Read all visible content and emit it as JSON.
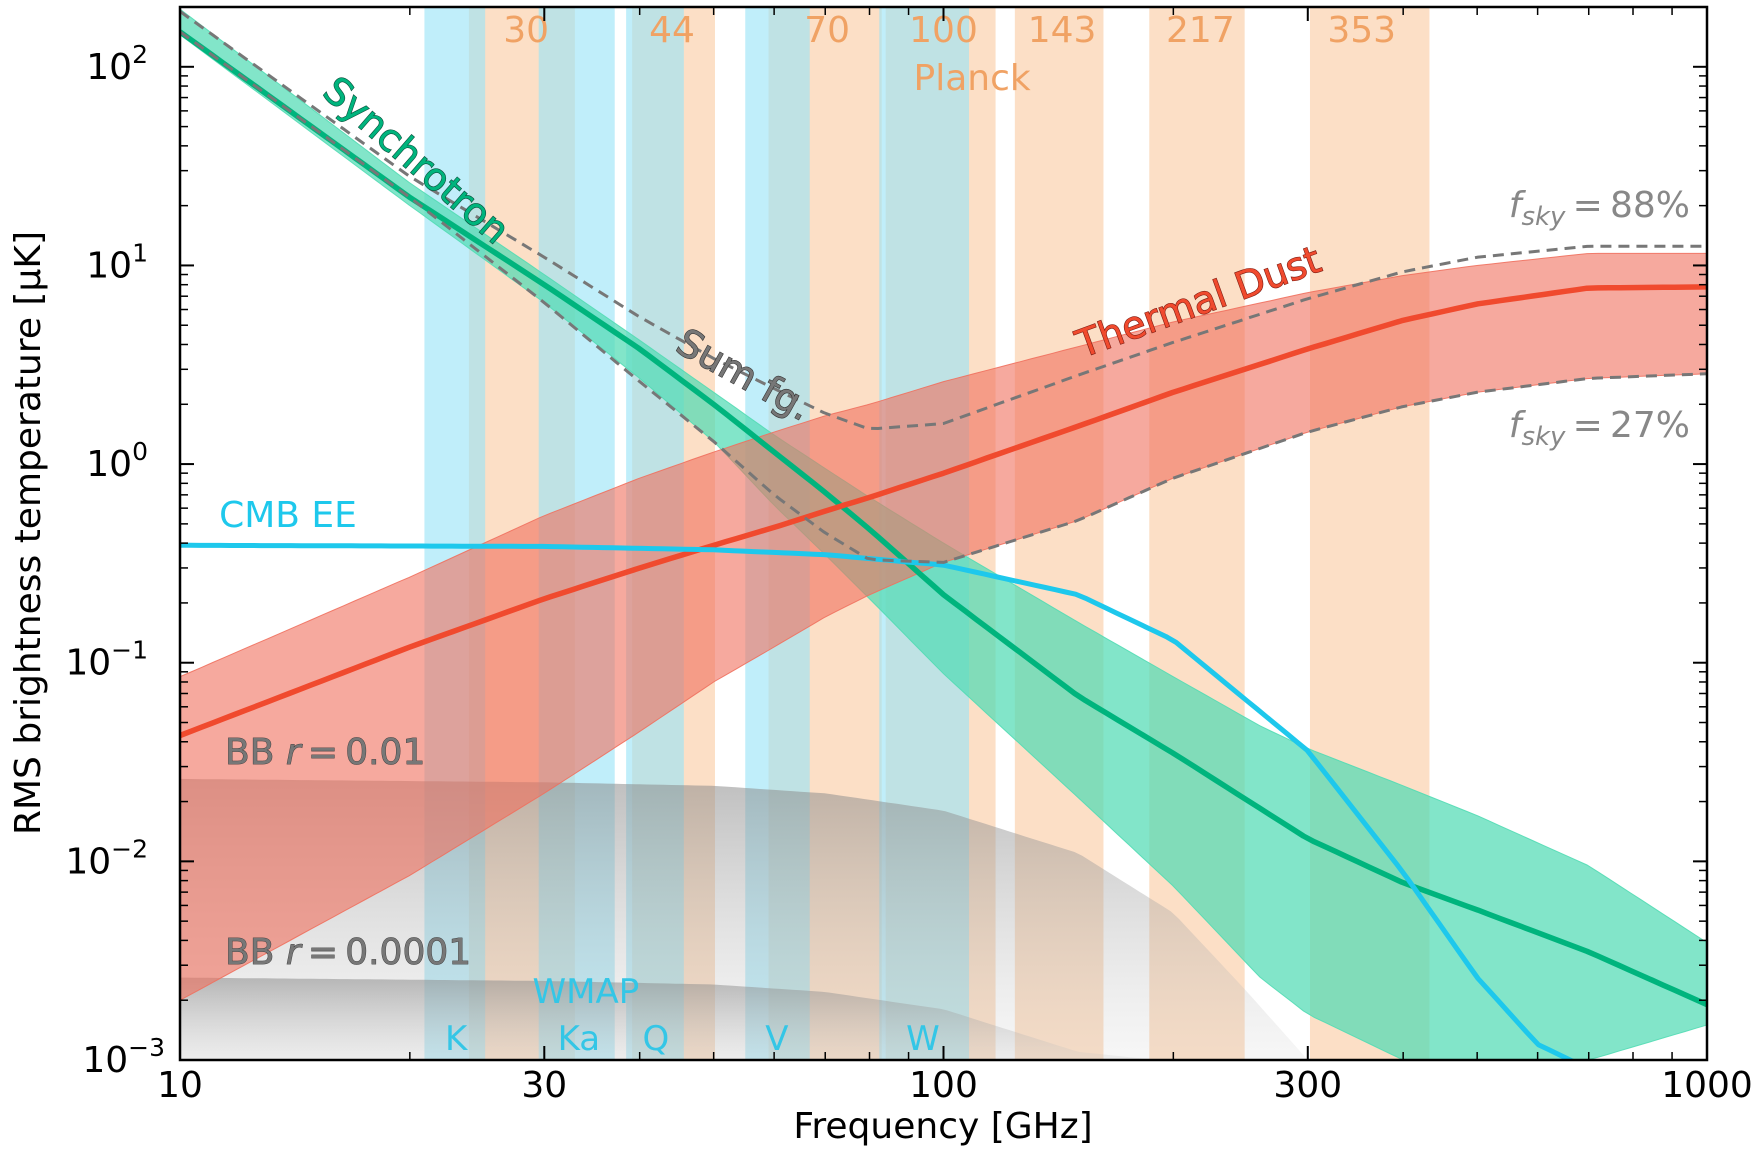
{
  "chart_data": {
    "type": "line",
    "title": "",
    "xlabel": "Frequency [GHz]",
    "ylabel": "RMS brightness temperature [μK]",
    "xscale": "log",
    "yscale": "log",
    "xlim": [
      10,
      1000
    ],
    "ylim": [
      0.001,
      200
    ],
    "xticks": [
      {
        "value": 10,
        "label": "10"
      },
      {
        "value": 30,
        "label": "30"
      },
      {
        "value": 100,
        "label": "100"
      },
      {
        "value": 300,
        "label": "300"
      },
      {
        "value": 1000,
        "label": "1000"
      }
    ],
    "yticks": [
      {
        "value": 0.001,
        "base": "10",
        "exp": "−3"
      },
      {
        "value": 0.01,
        "base": "10",
        "exp": "−2"
      },
      {
        "value": 0.1,
        "base": "10",
        "exp": "−1"
      },
      {
        "value": 1,
        "base": "10",
        "exp": "0"
      },
      {
        "value": 10,
        "base": "10",
        "exp": "1"
      },
      {
        "value": 100,
        "base": "10",
        "exp": "2"
      }
    ],
    "colors": {
      "synchrotron": "#00b47d",
      "synchrotron_band": "#52dbb4",
      "dust": "#f04a2e",
      "dust_band": "#f0705e",
      "cmb": "#1ec8ec",
      "sum": "#777777",
      "planck_band": "#fbd2b0",
      "wmap_band": "#9ae4f7",
      "planck_text": "#f0a264",
      "wmap_text": "#34c6e6",
      "bb": "#9e9e9e"
    },
    "planck_bands": [
      {
        "label": "30",
        "center": 28.4,
        "lo": 23.9,
        "hi": 32.9
      },
      {
        "label": "44",
        "center": 44.1,
        "lo": 39.1,
        "hi": 50.2
      },
      {
        "label": "70",
        "center": 70.4,
        "lo": 59.0,
        "hi": 83.0
      },
      {
        "label": "100",
        "center": 100,
        "lo": 84,
        "hi": 117
      },
      {
        "label": "143",
        "center": 143,
        "lo": 124,
        "hi": 162
      },
      {
        "label": "217",
        "center": 217,
        "lo": 186,
        "hi": 248
      },
      {
        "label": "353",
        "center": 353,
        "lo": 302,
        "hi": 433
      }
    ],
    "planck_name": "Planck",
    "wmap_bands": [
      {
        "label": "K",
        "lo": 20.9,
        "hi": 25.1
      },
      {
        "label": "Ka",
        "lo": 29.5,
        "hi": 37.1
      },
      {
        "label": "Q",
        "lo": 38.4,
        "hi": 45.7
      },
      {
        "label": "V",
        "lo": 55.0,
        "hi": 66.8
      },
      {
        "label": "W",
        "lo": 82.4,
        "hi": 108.0
      }
    ],
    "wmap_name": "WMAP",
    "series": [
      {
        "name": "Synchrotron",
        "x": [
          10,
          20,
          30,
          40,
          50,
          60,
          70,
          80,
          100,
          150,
          200,
          300,
          400,
          500,
          700,
          1000
        ],
        "y": [
          150,
          22,
          8.0,
          3.8,
          2.0,
          1.15,
          0.72,
          0.47,
          0.22,
          0.068,
          0.035,
          0.013,
          0.0078,
          0.0057,
          0.0035,
          0.0019
        ]
      },
      {
        "name": "Thermal Dust",
        "x": [
          10,
          20,
          30,
          40,
          50,
          60,
          70,
          80,
          100,
          150,
          200,
          300,
          400,
          500,
          700,
          1000
        ],
        "y": [
          0.043,
          0.12,
          0.21,
          0.3,
          0.39,
          0.48,
          0.58,
          0.68,
          0.9,
          1.55,
          2.3,
          3.8,
          5.3,
          6.4,
          7.7,
          7.8
        ]
      },
      {
        "name": "CMB EE",
        "x": [
          10,
          30,
          50,
          70,
          100,
          150,
          200,
          300,
          400,
          500,
          600,
          700
        ],
        "y": [
          0.39,
          0.385,
          0.37,
          0.35,
          0.31,
          0.22,
          0.13,
          0.036,
          0.0088,
          0.0026,
          0.0012,
          0.0009
        ]
      },
      {
        "name": "Sum fg.",
        "label": "f_sky = 88%",
        "x": [
          10,
          20,
          30,
          40,
          50,
          60,
          70,
          80,
          100,
          150,
          200,
          300,
          400,
          500,
          700,
          1000
        ],
        "y": [
          190,
          28,
          11,
          5.5,
          3.4,
          2.4,
          1.8,
          1.5,
          1.6,
          2.8,
          4.1,
          6.8,
          9.3,
          11,
          12.5,
          12.5
        ]
      },
      {
        "name": "Sum fg. lower",
        "label": "f_sky = 27%",
        "x": [
          10,
          20,
          30,
          40,
          50,
          60,
          70,
          80,
          100,
          150,
          200,
          300,
          400,
          500,
          700,
          1000
        ],
        "y": [
          150,
          22,
          6.5,
          2.6,
          1.3,
          0.7,
          0.45,
          0.33,
          0.32,
          0.52,
          0.85,
          1.45,
          1.95,
          2.3,
          2.7,
          2.85
        ]
      }
    ],
    "bands": {
      "synchrotron": {
        "x": [
          10,
          20,
          30,
          40,
          50,
          60,
          70,
          80,
          100,
          150,
          200,
          260,
          300,
          400,
          500,
          700,
          1000
        ],
        "hi": [
          195,
          26,
          9.0,
          4.2,
          2.3,
          1.4,
          0.95,
          0.68,
          0.4,
          0.16,
          0.085,
          0.048,
          0.037,
          0.024,
          0.017,
          0.0095,
          0.0039
        ],
        "lo": [
          145,
          20,
          6.5,
          2.7,
          1.3,
          0.62,
          0.35,
          0.21,
          0.088,
          0.021,
          0.0075,
          0.0026,
          0.0017,
          0.001,
          0.001,
          0.001,
          0.0015
        ]
      },
      "dust": {
        "x": [
          10,
          20,
          30,
          40,
          50,
          60,
          70,
          80,
          100,
          150,
          200,
          300,
          400,
          500,
          700,
          1000
        ],
        "hi": [
          0.085,
          0.27,
          0.55,
          0.85,
          1.15,
          1.45,
          1.75,
          2.0,
          2.6,
          3.9,
          5.2,
          7.3,
          8.9,
          10,
          11.5,
          11.5
        ],
        "lo": [
          0.002,
          0.0085,
          0.022,
          0.045,
          0.08,
          0.12,
          0.17,
          0.22,
          0.32,
          0.52,
          0.85,
          1.45,
          1.95,
          2.3,
          2.7,
          2.85
        ]
      },
      "bb_001": {
        "x": [
          10,
          30,
          50,
          70,
          100,
          150,
          200,
          250,
          300
        ],
        "y": [
          0.026,
          0.025,
          0.024,
          0.022,
          0.018,
          0.011,
          0.0055,
          0.0022,
          0.001
        ]
      },
      "bb_00001": {
        "x": [
          10,
          30,
          50,
          70,
          100,
          150,
          190
        ],
        "y": [
          0.0026,
          0.0025,
          0.0024,
          0.0022,
          0.0018,
          0.0011,
          0.001
        ]
      }
    },
    "annotations": {
      "synchrotron": "Synchrotron",
      "thermal_dust": "Thermal Dust",
      "sum_fg": "Sum fg.",
      "cmb_ee": "CMB EE",
      "bb_001": {
        "prefix": "BB ",
        "var": "r",
        "eq": " = 0.01"
      },
      "bb_00001": {
        "prefix": "BB ",
        "var": "r",
        "eq": " = 0.0001"
      },
      "fsky_88": {
        "f": "f",
        "sub": "sky",
        "eq": " = 88%"
      },
      "fsky_27": {
        "f": "f",
        "sub": "sky",
        "eq": " = 27%"
      }
    }
  }
}
